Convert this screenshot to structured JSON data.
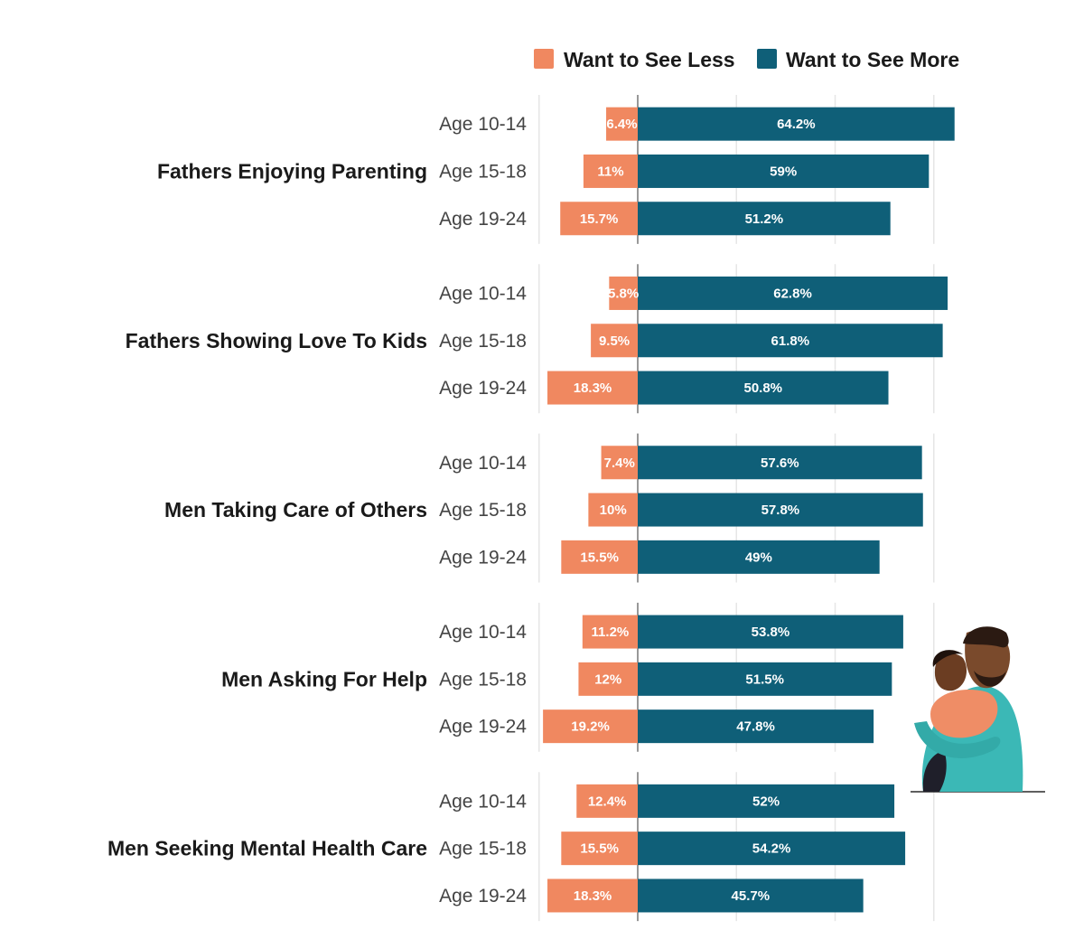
{
  "chart_data": {
    "type": "bar",
    "orientation": "horizontal-diverging",
    "xlim": [
      -20,
      60
    ],
    "grid": true,
    "legend_position": "top-right",
    "colors": {
      "less": "#f08860",
      "more": "#0f5f78"
    },
    "series": [
      {
        "name": "Want to See Less",
        "key": "less"
      },
      {
        "name": "Want to See More",
        "key": "more"
      }
    ],
    "groups": [
      {
        "label": "Fathers Enjoying Parenting",
        "rows": [
          {
            "age": "Age 10-14",
            "less": 6.4,
            "more": 64.2,
            "less_label": "6.4%",
            "more_label": "64.2%"
          },
          {
            "age": "Age 15-18",
            "less": 11,
            "more": 59,
            "less_label": "11%",
            "more_label": "59%"
          },
          {
            "age": "Age 19-24",
            "less": 15.7,
            "more": 51.2,
            "less_label": "15.7%",
            "more_label": "51.2%"
          }
        ]
      },
      {
        "label": "Fathers Showing Love To Kids",
        "rows": [
          {
            "age": "Age 10-14",
            "less": 5.8,
            "more": 62.8,
            "less_label": "5.8%",
            "more_label": "62.8%"
          },
          {
            "age": "Age 15-18",
            "less": 9.5,
            "more": 61.8,
            "less_label": "9.5%",
            "more_label": "61.8%"
          },
          {
            "age": "Age 19-24",
            "less": 18.3,
            "more": 50.8,
            "less_label": "18.3%",
            "more_label": "50.8%"
          }
        ]
      },
      {
        "label": "Men Taking Care of Others",
        "rows": [
          {
            "age": "Age 10-14",
            "less": 7.4,
            "more": 57.6,
            "less_label": "7.4%",
            "more_label": "57.6%"
          },
          {
            "age": "Age 15-18",
            "less": 10,
            "more": 57.8,
            "less_label": "10%",
            "more_label": "57.8%"
          },
          {
            "age": "Age 19-24",
            "less": 15.5,
            "more": 49,
            "less_label": "15.5%",
            "more_label": "49%"
          }
        ]
      },
      {
        "label": "Men Asking For Help",
        "rows": [
          {
            "age": "Age 10-14",
            "less": 11.2,
            "more": 53.8,
            "less_label": "11.2%",
            "more_label": "53.8%"
          },
          {
            "age": "Age 15-18",
            "less": 12,
            "more": 51.5,
            "less_label": "12%",
            "more_label": "51.5%"
          },
          {
            "age": "Age 19-24",
            "less": 19.2,
            "more": 47.8,
            "less_label": "19.2%",
            "more_label": "47.8%"
          }
        ]
      },
      {
        "label": "Men Seeking Mental Health Care",
        "rows": [
          {
            "age": "Age 10-14",
            "less": 12.4,
            "more": 52,
            "less_label": "12.4%",
            "more_label": "52%"
          },
          {
            "age": "Age 15-18",
            "less": 15.5,
            "more": 54.2,
            "less_label": "15.5%",
            "more_label": "54.2%"
          },
          {
            "age": "Age 19-24",
            "less": 18.3,
            "more": 45.7,
            "less_label": "18.3%",
            "more_label": "45.7%"
          }
        ]
      }
    ]
  },
  "illustration": {
    "icon": "father-hugging-child-illustration"
  }
}
